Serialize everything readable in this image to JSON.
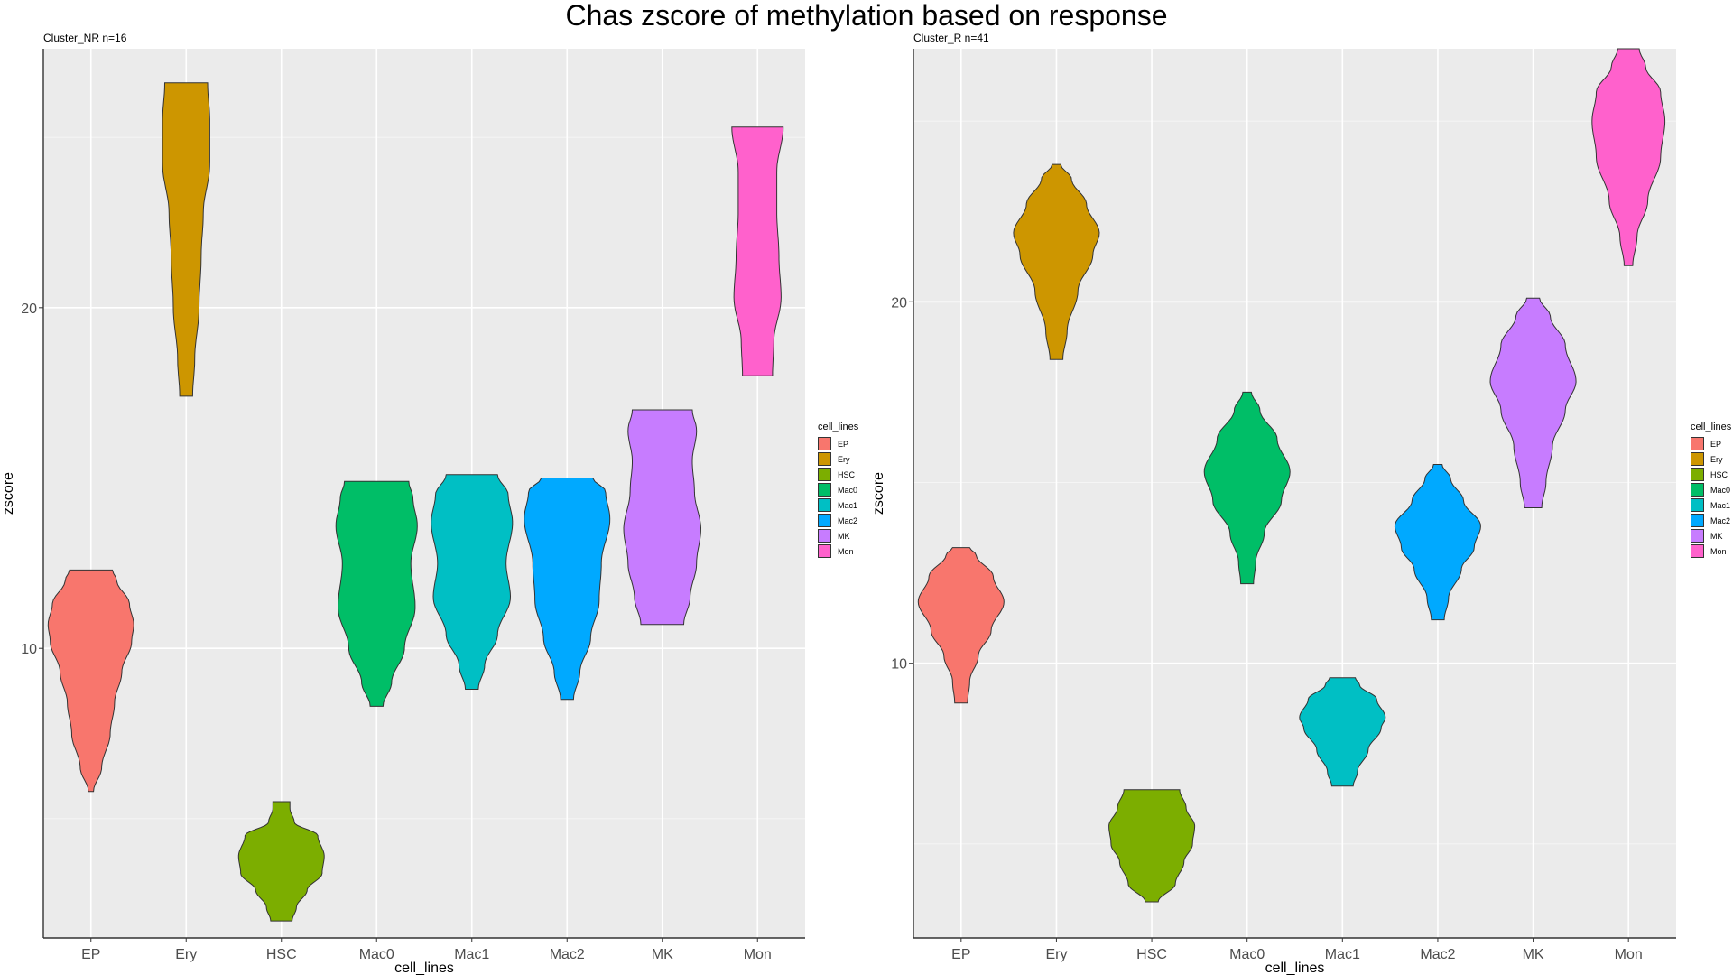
{
  "title": "Chas zscore of methylation based on response",
  "chart_data": [
    {
      "type": "violin",
      "panel_title": "Cluster_NR n=16",
      "xlabel": "cell_lines",
      "ylabel": "zscore",
      "categories": [
        "EP",
        "Ery",
        "HSC",
        "Mac0",
        "Mac1",
        "Mac2",
        "MK",
        "Mon"
      ],
      "ylim": [
        1.5,
        27.6
      ],
      "yticks": [
        10,
        20
      ],
      "grid": true,
      "legend_position": "right",
      "violins": [
        {
          "category": "EP",
          "min": 5.8,
          "max": 12.3,
          "profile": [
            [
              5.8,
              0.06
            ],
            [
              6.5,
              0.25
            ],
            [
              7.5,
              0.45
            ],
            [
              8.4,
              0.55
            ],
            [
              9.3,
              0.72
            ],
            [
              10.2,
              0.95
            ],
            [
              10.7,
              1.0
            ],
            [
              11.3,
              0.9
            ],
            [
              12.0,
              0.6
            ],
            [
              12.3,
              0.5
            ]
          ]
        },
        {
          "category": "Ery",
          "min": 17.4,
          "max": 26.6,
          "profile": [
            [
              17.4,
              0.15
            ],
            [
              18.5,
              0.2
            ],
            [
              20.0,
              0.3
            ],
            [
              21.5,
              0.35
            ],
            [
              22.8,
              0.4
            ],
            [
              24.2,
              0.55
            ],
            [
              25.5,
              0.55
            ],
            [
              26.6,
              0.5
            ]
          ]
        },
        {
          "category": "HSC",
          "min": 2.0,
          "max": 5.5,
          "profile": [
            [
              2.0,
              0.25
            ],
            [
              2.4,
              0.35
            ],
            [
              2.9,
              0.6
            ],
            [
              3.4,
              0.95
            ],
            [
              3.9,
              1.0
            ],
            [
              4.5,
              0.85
            ],
            [
              4.9,
              0.3
            ],
            [
              5.3,
              0.2
            ],
            [
              5.5,
              0.2
            ]
          ]
        },
        {
          "category": "Mac0",
          "min": 8.3,
          "max": 14.9,
          "profile": [
            [
              8.3,
              0.15
            ],
            [
              9.0,
              0.35
            ],
            [
              10.0,
              0.65
            ],
            [
              11.2,
              0.9
            ],
            [
              12.5,
              0.8
            ],
            [
              13.6,
              0.95
            ],
            [
              14.4,
              0.85
            ],
            [
              14.9,
              0.75
            ]
          ]
        },
        {
          "category": "Mac1",
          "min": 8.8,
          "max": 15.1,
          "profile": [
            [
              8.8,
              0.15
            ],
            [
              9.5,
              0.3
            ],
            [
              10.4,
              0.6
            ],
            [
              11.5,
              0.9
            ],
            [
              12.5,
              0.8
            ],
            [
              13.7,
              0.95
            ],
            [
              14.5,
              0.85
            ],
            [
              15.1,
              0.6
            ]
          ]
        },
        {
          "category": "Mac2",
          "min": 8.5,
          "max": 15.0,
          "profile": [
            [
              8.5,
              0.15
            ],
            [
              9.3,
              0.3
            ],
            [
              10.3,
              0.55
            ],
            [
              11.4,
              0.75
            ],
            [
              12.5,
              0.8
            ],
            [
              13.8,
              1.0
            ],
            [
              14.6,
              0.9
            ],
            [
              15.0,
              0.6
            ]
          ]
        },
        {
          "category": "MK",
          "min": 10.7,
          "max": 17.0,
          "profile": [
            [
              10.7,
              0.5
            ],
            [
              11.5,
              0.65
            ],
            [
              12.5,
              0.8
            ],
            [
              13.5,
              0.9
            ],
            [
              14.6,
              0.75
            ],
            [
              15.5,
              0.7
            ],
            [
              16.4,
              0.8
            ],
            [
              17.0,
              0.7
            ]
          ]
        },
        {
          "category": "Mon",
          "min": 18.0,
          "max": 25.3,
          "profile": [
            [
              18.0,
              0.35
            ],
            [
              19.0,
              0.38
            ],
            [
              20.3,
              0.55
            ],
            [
              21.5,
              0.5
            ],
            [
              22.8,
              0.45
            ],
            [
              24.0,
              0.45
            ],
            [
              25.3,
              0.6
            ]
          ]
        }
      ]
    },
    {
      "type": "violin",
      "panel_title": "Cluster_R n=41",
      "xlabel": "cell_lines",
      "ylabel": "zscore",
      "categories": [
        "EP",
        "Ery",
        "HSC",
        "Mac0",
        "Mac1",
        "Mac2",
        "MK",
        "Mon"
      ],
      "ylim": [
        2.4,
        27.0
      ],
      "yticks": [
        10,
        20
      ],
      "grid": true,
      "legend_position": "right",
      "violins": [
        {
          "category": "EP",
          "min": 8.9,
          "max": 13.2,
          "profile": [
            [
              8.9,
              0.15
            ],
            [
              9.5,
              0.2
            ],
            [
              10.2,
              0.4
            ],
            [
              10.9,
              0.7
            ],
            [
              11.7,
              1.0
            ],
            [
              12.4,
              0.75
            ],
            [
              13.0,
              0.35
            ],
            [
              13.2,
              0.2
            ]
          ]
        },
        {
          "category": "Ery",
          "min": 18.4,
          "max": 23.8,
          "profile": [
            [
              18.4,
              0.15
            ],
            [
              19.2,
              0.25
            ],
            [
              20.3,
              0.5
            ],
            [
              21.3,
              0.85
            ],
            [
              21.9,
              1.0
            ],
            [
              22.7,
              0.7
            ],
            [
              23.4,
              0.35
            ],
            [
              23.8,
              0.1
            ]
          ]
        },
        {
          "category": "HSC",
          "min": 3.4,
          "max": 6.5,
          "profile": [
            [
              3.4,
              0.15
            ],
            [
              3.9,
              0.55
            ],
            [
              4.5,
              0.75
            ],
            [
              5.0,
              0.95
            ],
            [
              5.5,
              1.0
            ],
            [
              6.0,
              0.8
            ],
            [
              6.5,
              0.65
            ]
          ]
        },
        {
          "category": "Mac0",
          "min": 12.2,
          "max": 17.5,
          "profile": [
            [
              12.2,
              0.15
            ],
            [
              12.8,
              0.2
            ],
            [
              13.6,
              0.4
            ],
            [
              14.5,
              0.8
            ],
            [
              15.3,
              1.0
            ],
            [
              16.2,
              0.7
            ],
            [
              17.0,
              0.3
            ],
            [
              17.5,
              0.1
            ]
          ]
        },
        {
          "category": "Mac1",
          "min": 6.6,
          "max": 9.6,
          "profile": [
            [
              6.6,
              0.25
            ],
            [
              7.0,
              0.35
            ],
            [
              7.6,
              0.6
            ],
            [
              8.2,
              0.9
            ],
            [
              8.5,
              1.0
            ],
            [
              9.0,
              0.8
            ],
            [
              9.4,
              0.4
            ],
            [
              9.6,
              0.3
            ]
          ]
        },
        {
          "category": "Mac2",
          "min": 11.2,
          "max": 15.5,
          "profile": [
            [
              11.2,
              0.15
            ],
            [
              11.8,
              0.25
            ],
            [
              12.6,
              0.55
            ],
            [
              13.2,
              0.85
            ],
            [
              13.8,
              1.0
            ],
            [
              14.5,
              0.6
            ],
            [
              15.1,
              0.3
            ],
            [
              15.5,
              0.1
            ]
          ]
        },
        {
          "category": "MK",
          "min": 14.3,
          "max": 20.1,
          "profile": [
            [
              14.3,
              0.2
            ],
            [
              15.0,
              0.3
            ],
            [
              16.0,
              0.45
            ],
            [
              17.0,
              0.75
            ],
            [
              17.8,
              1.0
            ],
            [
              18.8,
              0.75
            ],
            [
              19.6,
              0.4
            ],
            [
              20.1,
              0.15
            ]
          ]
        },
        {
          "category": "Mon",
          "min": 21.0,
          "max": 27.0,
          "profile": [
            [
              21.0,
              0.1
            ],
            [
              21.8,
              0.2
            ],
            [
              22.8,
              0.45
            ],
            [
              24.0,
              0.75
            ],
            [
              25.0,
              0.85
            ],
            [
              25.8,
              0.75
            ],
            [
              26.5,
              0.4
            ],
            [
              27.0,
              0.25
            ]
          ]
        }
      ]
    }
  ],
  "legend": {
    "title": "cell_lines",
    "items": [
      {
        "label": "EP",
        "color": "#F8766D"
      },
      {
        "label": "Ery",
        "color": "#CD9600"
      },
      {
        "label": "HSC",
        "color": "#7CAE00"
      },
      {
        "label": "Mac0",
        "color": "#00BE67"
      },
      {
        "label": "Mac1",
        "color": "#00BFC4"
      },
      {
        "label": "Mac2",
        "color": "#00A9FF"
      },
      {
        "label": "MK",
        "color": "#C77CFF"
      },
      {
        "label": "Mon",
        "color": "#FF61CC"
      }
    ]
  }
}
